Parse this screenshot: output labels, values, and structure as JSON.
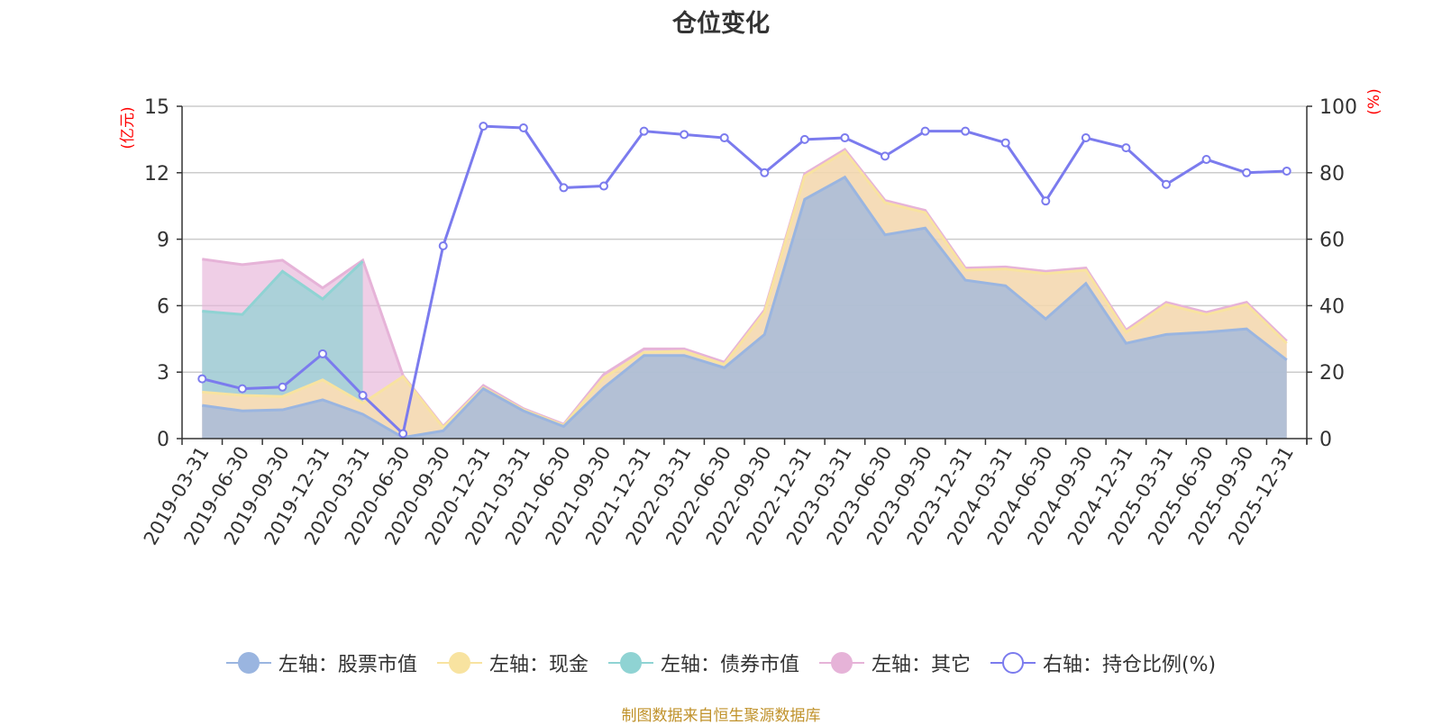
{
  "title": "仓位变化",
  "footer": "制图数据来自恒生聚源数据库",
  "colors": {
    "stock": "#9ab5e0",
    "cash": "#f8e3a0",
    "bond": "#8fd3d3",
    "other": "#e6b3d8",
    "ratio": "#7b7bee",
    "axis_unit": "#ff0000"
  },
  "legend": [
    {
      "key": "stock",
      "label": "左轴：股票市值",
      "icon": "filled-circle-icon"
    },
    {
      "key": "cash",
      "label": "左轴：现金",
      "icon": "filled-circle-icon"
    },
    {
      "key": "bond",
      "label": "左轴：债券市值",
      "icon": "filled-circle-icon"
    },
    {
      "key": "other",
      "label": "左轴：其它",
      "icon": "filled-circle-icon"
    },
    {
      "key": "ratio",
      "label": "右轴：持仓比例(%)",
      "icon": "hollow-circle-icon"
    }
  ],
  "chart_data": {
    "type": "area",
    "title": "仓位变化",
    "stacked": true,
    "x": [
      "2019-03-31",
      "2019-06-30",
      "2019-09-30",
      "2019-12-31",
      "2020-03-31",
      "2020-06-30",
      "2020-09-30",
      "2020-12-31",
      "2021-03-31",
      "2021-06-30",
      "2021-09-30",
      "2021-12-31",
      "2022-03-31",
      "2022-06-30",
      "2022-09-30",
      "2022-12-31",
      "2023-03-31",
      "2023-06-30",
      "2023-09-30",
      "2023-12-31",
      "2024-03-31",
      "2024-06-30",
      "2024-09-30",
      "2024-12-31",
      "2025-03-31",
      "2025-06-30",
      "2025-09-30",
      "2025-12-31"
    ],
    "left_axis": {
      "unit": "(亿元)",
      "ylim": [
        0,
        15
      ],
      "ticks": [
        0,
        3,
        6,
        9,
        12,
        15
      ]
    },
    "right_axis": {
      "unit": "(%)",
      "ylim": [
        0,
        100
      ],
      "ticks": [
        0,
        20,
        40,
        60,
        80,
        100
      ]
    },
    "series": [
      {
        "name": "左轴：股票市值",
        "key": "stock",
        "axis": "left",
        "values": [
          1.5,
          1.25,
          1.3,
          1.75,
          1.1,
          0.05,
          0.35,
          2.25,
          1.25,
          0.55,
          2.3,
          3.75,
          3.75,
          3.2,
          4.7,
          10.8,
          11.8,
          9.2,
          9.5,
          7.15,
          6.9,
          5.4,
          7.0,
          4.3,
          4.7,
          4.8,
          4.95,
          3.55
        ]
      },
      {
        "name": "左轴：现金",
        "key": "cash",
        "axis": "left",
        "values": [
          0.6,
          0.7,
          0.6,
          0.9,
          0.5,
          2.75,
          0.15,
          0.05,
          0.05,
          0.05,
          0.45,
          0.15,
          0.2,
          0.15,
          1.0,
          1.05,
          1.15,
          1.45,
          0.7,
          0.45,
          0.75,
          2.05,
          0.6,
          0.5,
          1.35,
          0.8,
          1.1,
          0.75
        ]
      },
      {
        "name": "左轴：债券市值",
        "key": "bond",
        "axis": "left",
        "values": [
          3.65,
          3.65,
          5.65,
          3.65,
          6.4,
          0,
          0,
          0,
          0,
          0,
          0,
          0,
          0,
          0,
          0,
          0,
          0,
          0,
          0,
          0,
          0,
          0,
          0,
          0,
          0,
          0,
          0,
          0
        ]
      },
      {
        "name": "左轴：其它",
        "key": "other",
        "axis": "left",
        "values": [
          2.35,
          2.25,
          0.5,
          0.5,
          0.05,
          0.05,
          0.05,
          0.1,
          0.05,
          0.05,
          0.15,
          0.15,
          0.1,
          0.1,
          0.1,
          0.1,
          0.1,
          0.1,
          0.1,
          0.1,
          0.1,
          0.1,
          0.1,
          0.1,
          0.1,
          0.1,
          0.1,
          0.1
        ]
      },
      {
        "name": "右轴：持仓比例(%)",
        "key": "ratio",
        "axis": "right",
        "type": "line",
        "values": [
          18,
          15,
          15.5,
          25.5,
          13,
          1.5,
          58,
          94,
          93.5,
          75.5,
          76,
          92.5,
          91.5,
          90.5,
          80,
          90,
          90.5,
          85,
          92.5,
          92.5,
          89,
          71.5,
          90.5,
          87.5,
          76.5,
          84,
          80,
          80.5
        ]
      }
    ]
  }
}
